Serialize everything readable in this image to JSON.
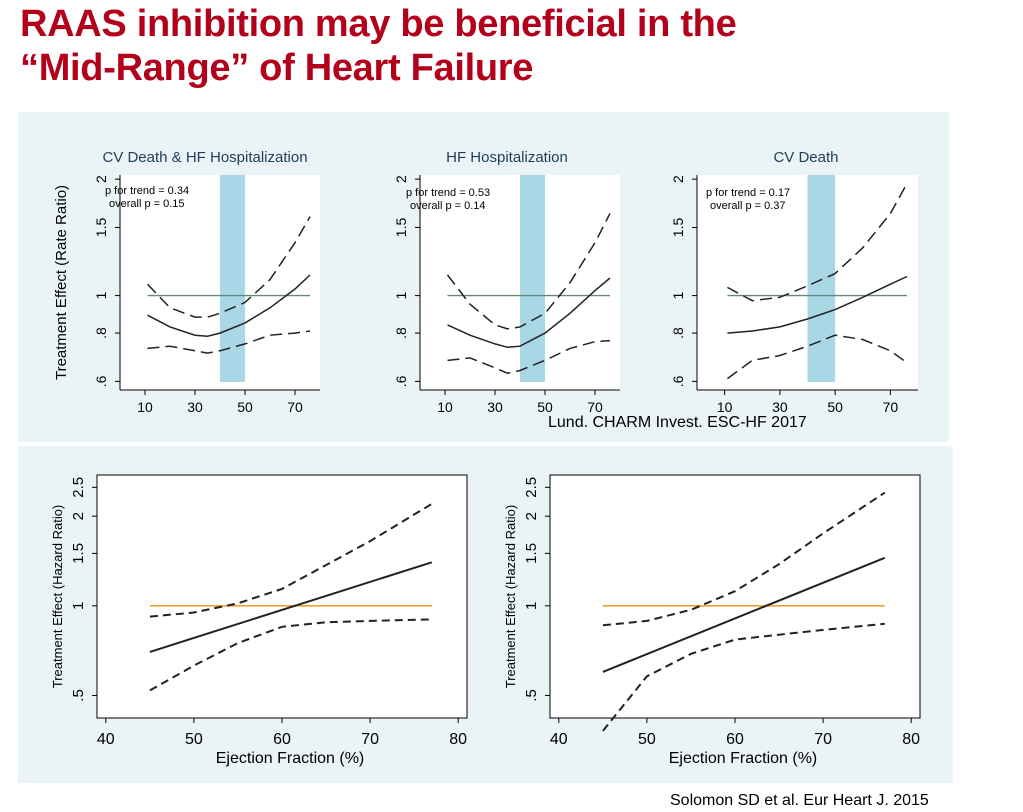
{
  "slide": {
    "title_line1": "RAAS inhibition may be beneficial in the",
    "title_line2": "“Mid-Range” of Heart Failure",
    "citation_top": "Lund. CHARM Invest. ESC-HF 2017",
    "citation_bottom": "Solomon SD et al. Eur Heart J. 2015"
  },
  "colors": {
    "title": "#b3001b",
    "panel_bg": "#eaf3f6",
    "shaded_band": "#a9d7e6",
    "reference_line_top": "#5f8c7a",
    "reference_line_bottom": "#f0a030"
  },
  "chart_data": [
    {
      "type": "line",
      "title": "CV Death & HF Hospitalization",
      "ylabel": "Treatment Effect (Rate Ratio)",
      "xlabel": "",
      "x_ticks": [
        10,
        30,
        50,
        70
      ],
      "y_ticks": [
        0.6,
        0.8,
        1,
        1.5,
        2
      ],
      "y_tick_labels": [
        ".6",
        ".8",
        "1",
        "1.5",
        "2"
      ],
      "y_scale": "log",
      "xlim": [
        0,
        80
      ],
      "ylim": [
        0.57,
        2.05
      ],
      "annotation": [
        "p for trend = 0.34",
        "overall p = 0.15"
      ],
      "shaded_band_x": [
        40,
        50
      ],
      "reference_y": 1,
      "series": [
        {
          "style": "solid",
          "x": [
            11,
            20,
            30,
            35,
            40,
            50,
            60,
            70,
            76
          ],
          "y": [
            0.89,
            0.83,
            0.79,
            0.785,
            0.8,
            0.85,
            0.93,
            1.04,
            1.13
          ]
        },
        {
          "style": "dashed",
          "x": [
            11,
            20,
            30,
            35,
            40,
            50,
            60,
            70,
            76
          ],
          "y": [
            1.07,
            0.93,
            0.88,
            0.88,
            0.9,
            0.96,
            1.1,
            1.37,
            1.6
          ]
        },
        {
          "style": "dashed",
          "x": [
            11,
            20,
            30,
            35,
            40,
            50,
            60,
            70,
            76
          ],
          "y": [
            0.73,
            0.74,
            0.72,
            0.71,
            0.72,
            0.75,
            0.79,
            0.8,
            0.81
          ]
        }
      ]
    },
    {
      "type": "line",
      "title": "HF Hospitalization",
      "ylabel": "",
      "xlabel": "",
      "x_ticks": [
        10,
        30,
        50,
        70
      ],
      "y_ticks": [
        0.6,
        0.8,
        1,
        1.5,
        2
      ],
      "y_tick_labels": [
        ".6",
        ".8",
        "1",
        "1.5",
        "2"
      ],
      "y_scale": "log",
      "xlim": [
        0,
        80
      ],
      "ylim": [
        0.57,
        2.05
      ],
      "annotation": [
        "p for trend = 0.53",
        "overall p = 0.14"
      ],
      "shaded_band_x": [
        40,
        50
      ],
      "reference_y": 1,
      "series": [
        {
          "style": "solid",
          "x": [
            11,
            20,
            30,
            35,
            40,
            50,
            60,
            70,
            76
          ],
          "y": [
            0.84,
            0.79,
            0.75,
            0.735,
            0.74,
            0.8,
            0.9,
            1.03,
            1.11
          ]
        },
        {
          "style": "dashed",
          "x": [
            11,
            20,
            30,
            35,
            40,
            50,
            60,
            70,
            76
          ],
          "y": [
            1.13,
            0.95,
            0.84,
            0.82,
            0.83,
            0.9,
            1.08,
            1.37,
            1.63
          ]
        },
        {
          "style": "dashed",
          "x": [
            11,
            20,
            30,
            35,
            40,
            50,
            60,
            70,
            76
          ],
          "y": [
            0.68,
            0.69,
            0.65,
            0.63,
            0.64,
            0.68,
            0.73,
            0.76,
            0.765
          ]
        }
      ]
    },
    {
      "type": "line",
      "title": "CV Death",
      "ylabel": "",
      "xlabel": "",
      "x_ticks": [
        10,
        30,
        50,
        70
      ],
      "y_ticks": [
        0.6,
        0.8,
        1,
        1.5,
        2
      ],
      "y_tick_labels": [
        ".6",
        ".8",
        "1",
        "1.5",
        "2"
      ],
      "y_scale": "log",
      "xlim": [
        0,
        80
      ],
      "ylim": [
        0.57,
        2.05
      ],
      "annotation": [
        "p for trend = 0.17",
        "overall p = 0.37"
      ],
      "shaded_band_x": [
        40,
        50
      ],
      "reference_y": 1,
      "series": [
        {
          "style": "solid",
          "x": [
            11,
            20,
            30,
            40,
            50,
            60,
            70,
            76
          ],
          "y": [
            0.8,
            0.81,
            0.83,
            0.87,
            0.92,
            0.99,
            1.07,
            1.12
          ]
        },
        {
          "style": "dashed",
          "x": [
            11,
            20,
            30,
            40,
            50,
            60,
            70,
            76
          ],
          "y": [
            1.05,
            0.97,
            0.99,
            1.06,
            1.14,
            1.33,
            1.63,
            1.95
          ]
        },
        {
          "style": "dashed",
          "x": [
            11,
            20,
            30,
            40,
            50,
            60,
            70,
            76
          ],
          "y": [
            0.61,
            0.68,
            0.7,
            0.74,
            0.79,
            0.77,
            0.72,
            0.67
          ]
        }
      ]
    },
    {
      "type": "line",
      "title": "",
      "ylabel": "Treatment Effect (Hazard Ratio)",
      "xlabel": "Ejection Fraction (%)",
      "x_ticks": [
        40,
        50,
        60,
        70,
        80
      ],
      "y_ticks": [
        0.5,
        1,
        1.5,
        2,
        2.5
      ],
      "y_tick_labels": [
        ".5",
        "1",
        "1.5",
        "2",
        "2.5"
      ],
      "y_scale": "log",
      "xlim": [
        39,
        81
      ],
      "ylim": [
        0.42,
        2.75
      ],
      "reference_y": 1,
      "series": [
        {
          "style": "solid",
          "x": [
            45,
            77
          ],
          "y": [
            0.7,
            1.4
          ]
        },
        {
          "style": "dashed",
          "x": [
            45,
            50,
            55,
            60,
            65,
            70,
            77
          ],
          "y": [
            0.92,
            0.95,
            1.02,
            1.14,
            1.37,
            1.65,
            2.2
          ]
        },
        {
          "style": "dashed",
          "x": [
            45,
            50,
            55,
            60,
            65,
            70,
            77
          ],
          "y": [
            0.52,
            0.63,
            0.75,
            0.85,
            0.88,
            0.89,
            0.9
          ]
        }
      ]
    },
    {
      "type": "line",
      "title": "",
      "ylabel": "Treatment Effect (Hazard Ratio)",
      "xlabel": "Ejection Fraction (%)",
      "x_ticks": [
        40,
        50,
        60,
        70,
        80
      ],
      "y_ticks": [
        0.5,
        1,
        1.5,
        2,
        2.5
      ],
      "y_tick_labels": [
        ".5",
        "1",
        "1.5",
        "2",
        "2.5"
      ],
      "y_scale": "log",
      "xlim": [
        39,
        81
      ],
      "ylim": [
        0.42,
        2.75
      ],
      "reference_y": 1,
      "series": [
        {
          "style": "solid",
          "x": [
            45,
            77
          ],
          "y": [
            0.6,
            1.45
          ]
        },
        {
          "style": "dashed",
          "x": [
            45,
            50,
            55,
            60,
            65,
            70,
            77
          ],
          "y": [
            0.86,
            0.89,
            0.97,
            1.12,
            1.38,
            1.75,
            2.4
          ]
        },
        {
          "style": "dashed",
          "x": [
            45,
            50,
            55,
            60,
            65,
            70,
            77
          ],
          "y": [
            0.38,
            0.58,
            0.69,
            0.77,
            0.8,
            0.83,
            0.87
          ]
        }
      ]
    }
  ]
}
